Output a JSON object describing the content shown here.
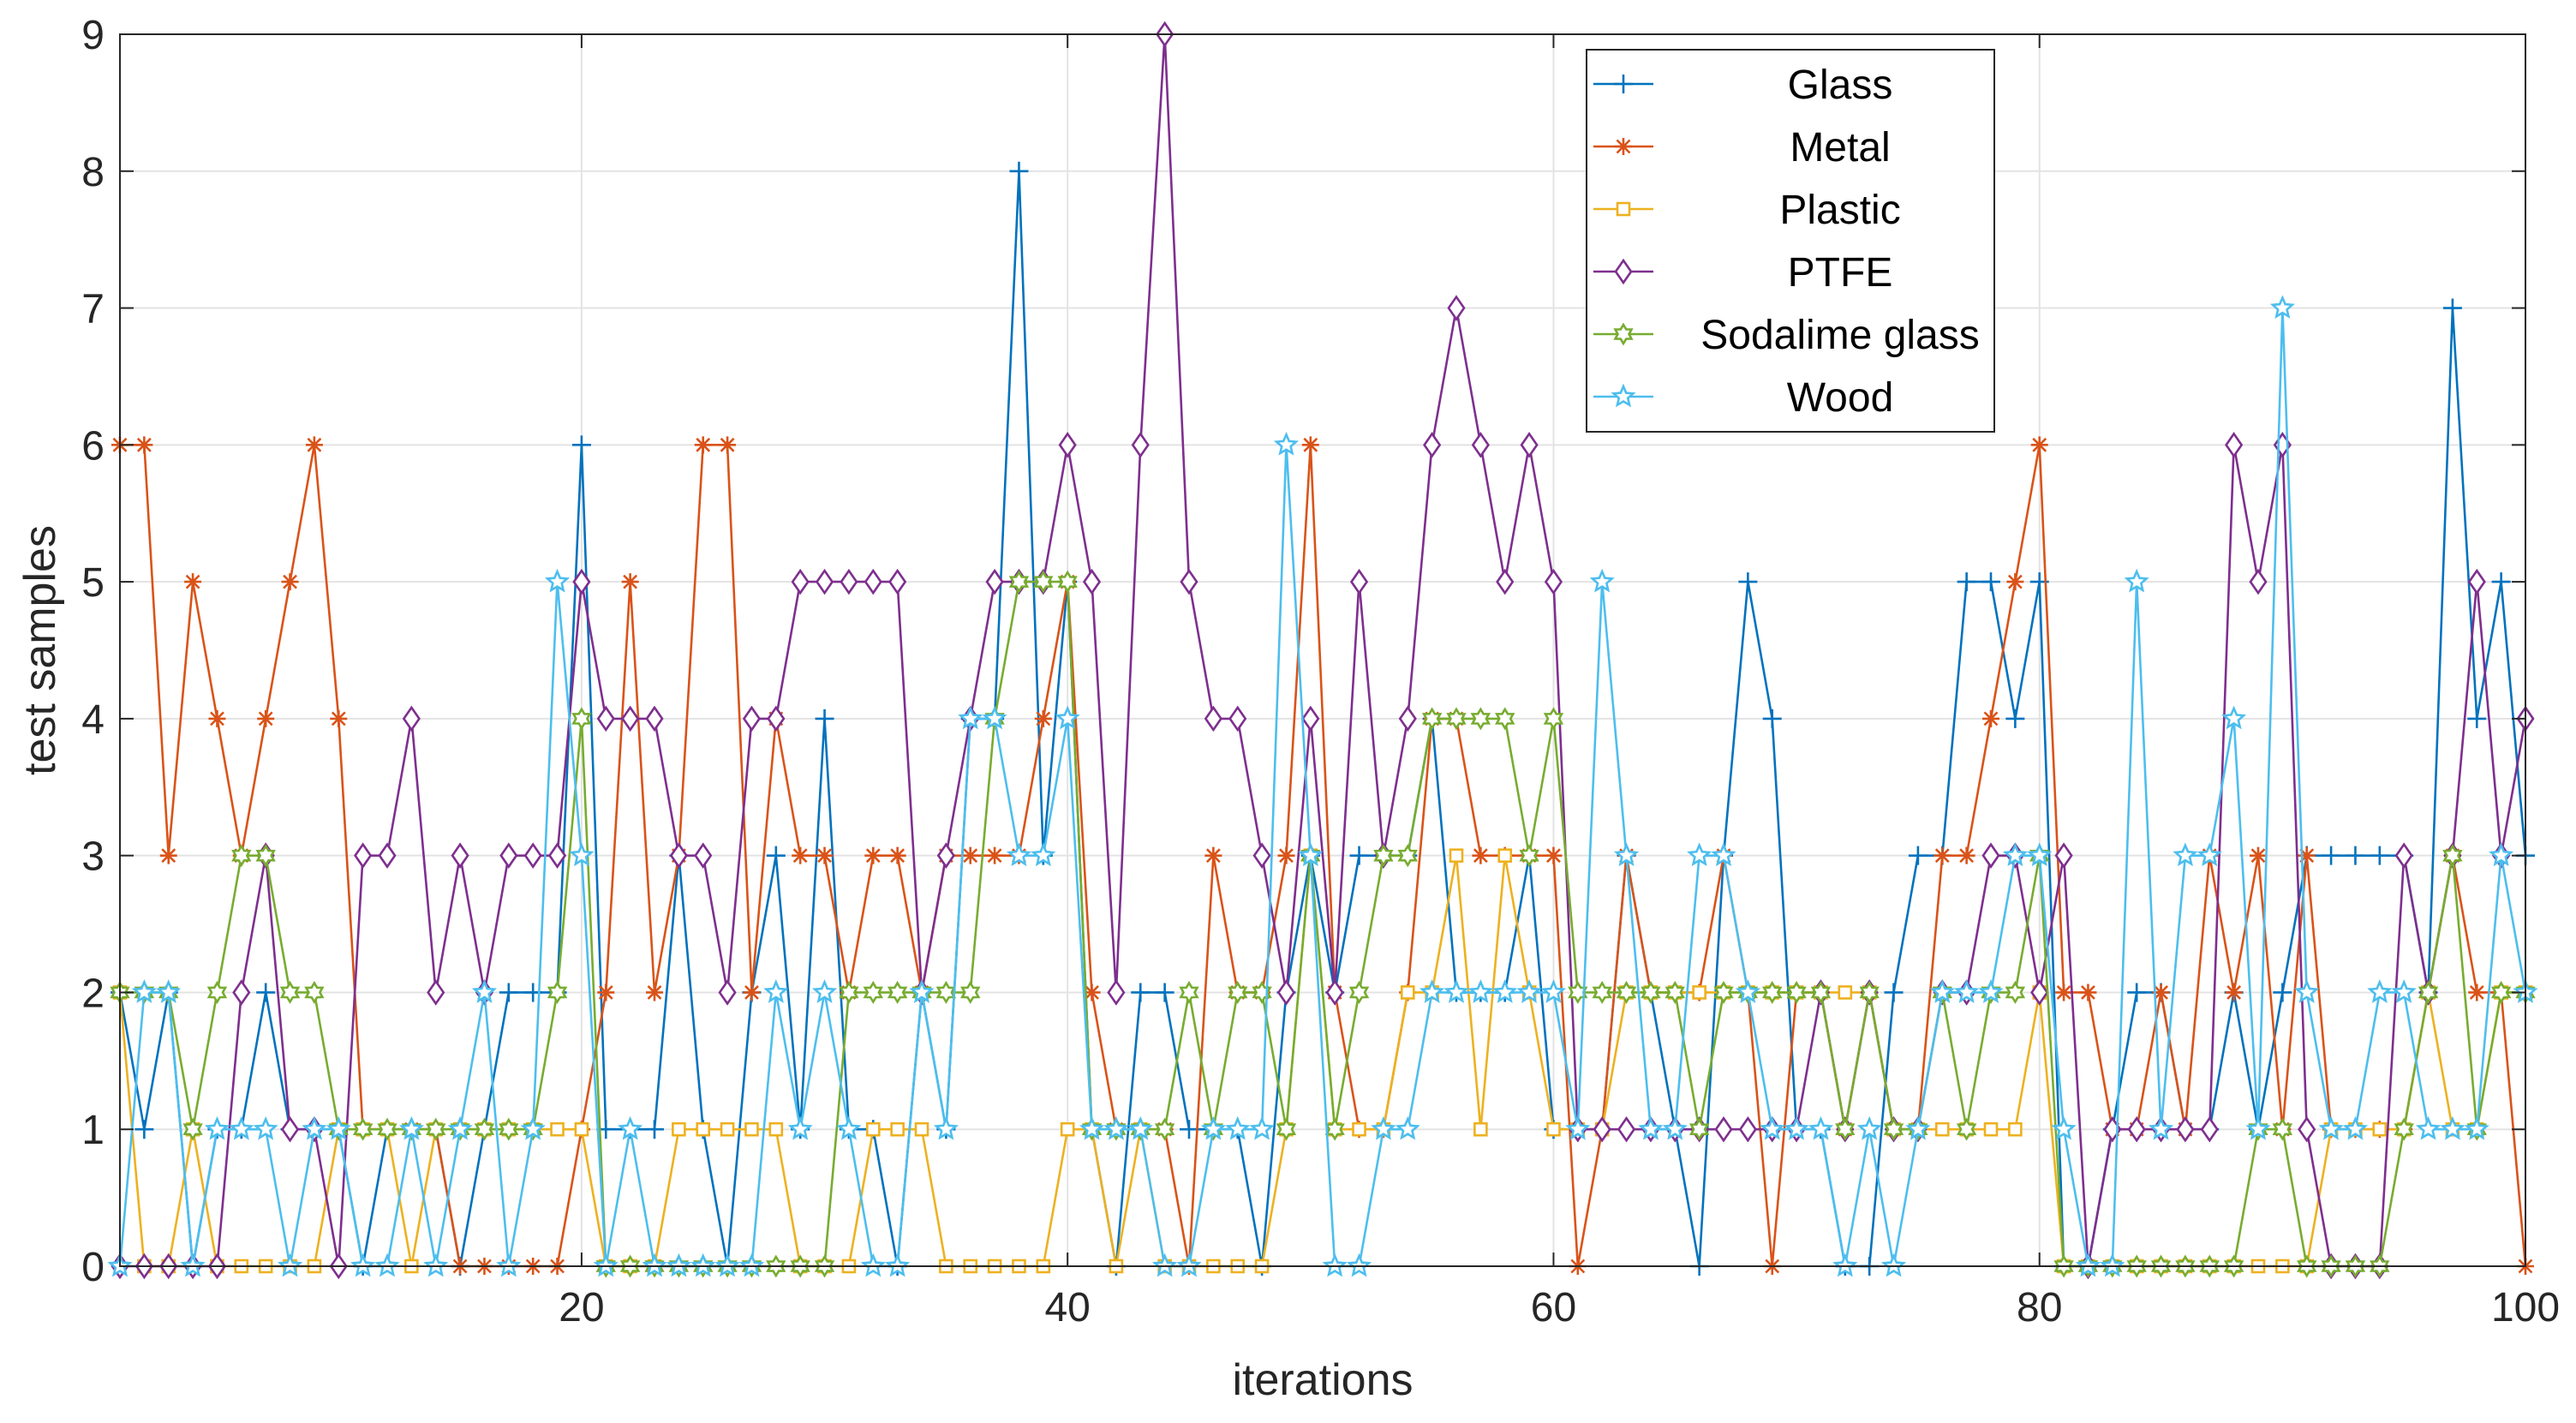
{
  "chart_data": {
    "type": "line",
    "title": "",
    "xlabel": "iterations",
    "ylabel": "test samples",
    "xlim": [
      1,
      100
    ],
    "ylim": [
      0,
      9
    ],
    "xticks": [
      20,
      40,
      60,
      80,
      100
    ],
    "yticks": [
      0,
      1,
      2,
      3,
      4,
      5,
      6,
      7,
      8,
      9
    ],
    "grid": true,
    "legend_position": "top-right",
    "series": [
      {
        "name": "Glass",
        "color": "#0072BD",
        "marker": "plus",
        "values": [
          2,
          1,
          2,
          0,
          1,
          1,
          2,
          1,
          1,
          1,
          0,
          1,
          1,
          1,
          0,
          1,
          2,
          2,
          2,
          6,
          1,
          1,
          1,
          3,
          1,
          0,
          2,
          3,
          1,
          4,
          1,
          1,
          0,
          2,
          1,
          4,
          4,
          8,
          3,
          5,
          1,
          0,
          2,
          2,
          1,
          1,
          1,
          0,
          2,
          3,
          2,
          3,
          3,
          3,
          4,
          2,
          2,
          2,
          3,
          1,
          1,
          1,
          3,
          2,
          1,
          0,
          3,
          5,
          4,
          1,
          1,
          0,
          0,
          2,
          3,
          3,
          5,
          5,
          4,
          5,
          0,
          0,
          1,
          2,
          2,
          1,
          1,
          2,
          1,
          2,
          3,
          3,
          3,
          3,
          3,
          2,
          7,
          4,
          5,
          3
        ]
      },
      {
        "name": "Metal",
        "color": "#D95319",
        "marker": "asterisk",
        "values": [
          6,
          6,
          3,
          5,
          4,
          3,
          4,
          5,
          6,
          4,
          1,
          1,
          1,
          1,
          0,
          0,
          0,
          0,
          0,
          1,
          2,
          5,
          2,
          3,
          6,
          6,
          2,
          4,
          3,
          3,
          2,
          3,
          3,
          2,
          3,
          3,
          3,
          3,
          4,
          5,
          2,
          1,
          1,
          1,
          0,
          3,
          2,
          2,
          3,
          6,
          2,
          1,
          1,
          2,
          4,
          4,
          3,
          3,
          3,
          3,
          0,
          1,
          3,
          2,
          2,
          2,
          3,
          2,
          0,
          2,
          2,
          1,
          2,
          1,
          1,
          3,
          3,
          4,
          5,
          6,
          2,
          2,
          1,
          1,
          2,
          1,
          3,
          2,
          3,
          1,
          3,
          1,
          1,
          1,
          1,
          2,
          3,
          2,
          2,
          0
        ]
      },
      {
        "name": "Plastic",
        "color": "#EDB120",
        "marker": "square",
        "values": [
          2,
          0,
          0,
          1,
          0,
          0,
          0,
          0,
          0,
          1,
          1,
          1,
          0,
          1,
          1,
          1,
          1,
          1,
          1,
          1,
          0,
          0,
          0,
          1,
          1,
          1,
          1,
          1,
          0,
          0,
          0,
          1,
          1,
          1,
          0,
          0,
          0,
          0,
          0,
          1,
          1,
          0,
          1,
          0,
          0,
          0,
          0,
          0,
          1,
          3,
          1,
          1,
          1,
          2,
          2,
          3,
          1,
          3,
          2,
          1,
          1,
          1,
          2,
          2,
          2,
          2,
          2,
          2,
          2,
          2,
          2,
          2,
          2,
          1,
          1,
          1,
          1,
          1,
          1,
          2,
          0,
          0,
          0,
          0,
          0,
          0,
          0,
          0,
          0,
          0,
          0,
          1,
          1,
          1,
          1,
          2,
          1,
          1,
          2,
          2
        ]
      },
      {
        "name": "PTFE",
        "color": "#7E2F8E",
        "marker": "diamond",
        "values": [
          0,
          0,
          0,
          0,
          0,
          2,
          3,
          1,
          1,
          0,
          3,
          3,
          4,
          2,
          3,
          2,
          3,
          3,
          3,
          5,
          4,
          4,
          4,
          3,
          3,
          2,
          4,
          4,
          5,
          5,
          5,
          5,
          5,
          2,
          3,
          4,
          5,
          5,
          5,
          6,
          5,
          2,
          6,
          9,
          5,
          4,
          4,
          3,
          2,
          4,
          2,
          5,
          3,
          4,
          6,
          7,
          6,
          5,
          6,
          5,
          1,
          1,
          1,
          1,
          1,
          1,
          1,
          1,
          1,
          1,
          2,
          1,
          2,
          1,
          1,
          2,
          2,
          3,
          3,
          2,
          3,
          0,
          1,
          1,
          1,
          1,
          1,
          6,
          5,
          6,
          1,
          0,
          0,
          0,
          3,
          2,
          3,
          5,
          3,
          4
        ]
      },
      {
        "name": "Sodalime glass",
        "color": "#77AC30",
        "marker": "hexagram",
        "values": [
          2,
          2,
          2,
          1,
          2,
          3,
          3,
          2,
          2,
          1,
          1,
          1,
          1,
          1,
          1,
          1,
          1,
          1,
          2,
          4,
          0,
          0,
          0,
          0,
          0,
          0,
          0,
          0,
          0,
          0,
          2,
          2,
          2,
          2,
          2,
          2,
          4,
          5,
          5,
          5,
          1,
          1,
          1,
          1,
          2,
          1,
          2,
          2,
          1,
          3,
          1,
          2,
          3,
          3,
          4,
          4,
          4,
          4,
          3,
          4,
          2,
          2,
          2,
          2,
          2,
          1,
          2,
          2,
          2,
          2,
          2,
          1,
          2,
          1,
          1,
          2,
          1,
          2,
          2,
          3,
          0,
          0,
          0,
          0,
          0,
          0,
          0,
          0,
          1,
          1,
          0,
          0,
          0,
          0,
          1,
          2,
          3,
          1,
          2,
          2
        ]
      },
      {
        "name": "Wood",
        "color": "#4DBEEE",
        "marker": "pentagram",
        "values": [
          0,
          2,
          2,
          0,
          1,
          1,
          1,
          0,
          1,
          1,
          0,
          0,
          1,
          0,
          1,
          2,
          0,
          1,
          5,
          3,
          0,
          1,
          0,
          0,
          0,
          0,
          0,
          2,
          1,
          2,
          1,
          0,
          0,
          2,
          1,
          4,
          4,
          3,
          3,
          4,
          1,
          1,
          1,
          0,
          0,
          1,
          1,
          1,
          6,
          3,
          0,
          0,
          1,
          1,
          2,
          2,
          2,
          2,
          2,
          2,
          1,
          5,
          3,
          1,
          1,
          3,
          3,
          2,
          1,
          1,
          1,
          0,
          1,
          0,
          1,
          2,
          2,
          2,
          3,
          3,
          1,
          0,
          0,
          5,
          1,
          3,
          3,
          4,
          1,
          7,
          2,
          1,
          1,
          2,
          2,
          1,
          1,
          1,
          3,
          2
        ]
      }
    ]
  }
}
